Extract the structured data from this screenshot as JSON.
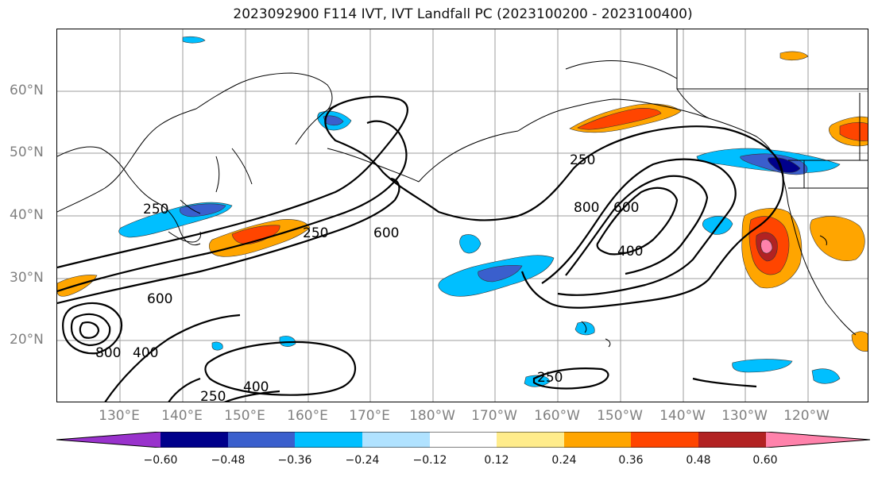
{
  "title": "2023092900 F114 IVT, IVT Landfall PC (2023100200 - 2023100400)",
  "lat_labels": [
    "60°N",
    "50°N",
    "40°N",
    "30°N",
    "20°N"
  ],
  "lon_labels": [
    "130°E",
    "140°E",
    "150°E",
    "160°E",
    "170°E",
    "180°W",
    "170°W",
    "160°W",
    "150°W",
    "140°W",
    "130°W",
    "120°W"
  ],
  "contour_labels": [
    "250",
    "250",
    "600",
    "800",
    "600",
    "400",
    "400",
    "800",
    "600",
    "250",
    "400",
    "250",
    "250"
  ],
  "colorbar": {
    "colors": [
      "#9932cc",
      "#00008b",
      "#3a5fcd",
      "#00bfff",
      "#b0e2ff",
      "#ffffff",
      "#ffec8b",
      "#ffa500",
      "#ff4500",
      "#b22222",
      "#ff82ab"
    ],
    "tick_labels": [
      "−0.60",
      "−0.48",
      "−0.36",
      "−0.24",
      "−0.12",
      "0.12",
      "0.24",
      "0.36",
      "0.48",
      "0.60"
    ]
  }
}
